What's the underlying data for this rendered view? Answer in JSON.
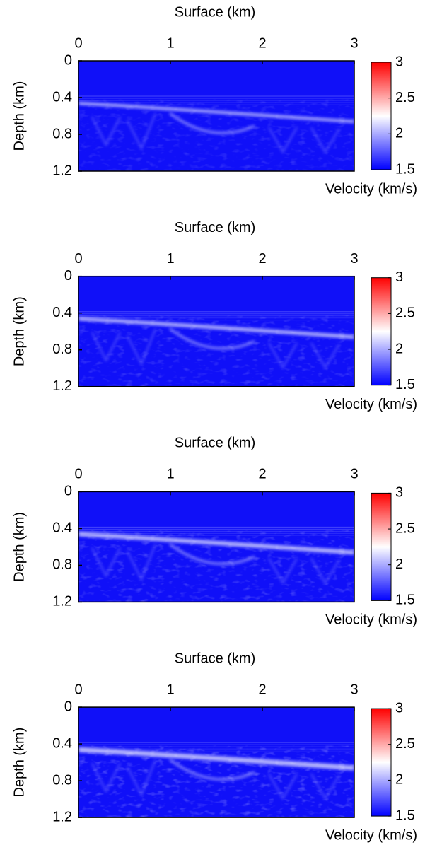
{
  "chart_data": [
    {
      "type": "heatmap",
      "xlabel": "Surface (km)",
      "ylabel": "Depth (km)",
      "colorbar_label": "Velocity (km/s)",
      "xlim": [
        0,
        3
      ],
      "xticks": [
        0,
        1,
        2,
        3
      ],
      "ylim": [
        0,
        1.2
      ],
      "yticks": [
        0,
        0.4,
        0.8,
        1.2
      ],
      "clim": [
        1.5,
        3
      ],
      "cticks": [
        1.5,
        2,
        2.5,
        3
      ],
      "colormap": [
        "#0000ff",
        "#ffffff",
        "#ff0000"
      ]
    },
    {
      "type": "heatmap",
      "xlabel": "Surface (km)",
      "ylabel": "Depth (km)",
      "colorbar_label": "Velocity (km/s)",
      "xlim": [
        0,
        3
      ],
      "xticks": [
        0,
        1,
        2,
        3
      ],
      "ylim": [
        0,
        1.2
      ],
      "yticks": [
        0,
        0.4,
        0.8,
        1.2
      ],
      "clim": [
        1.5,
        3
      ],
      "cticks": [
        1.5,
        2,
        2.5,
        3
      ],
      "colormap": [
        "#0000ff",
        "#ffffff",
        "#ff0000"
      ]
    },
    {
      "type": "heatmap",
      "xlabel": "Surface (km)",
      "ylabel": "Depth (km)",
      "colorbar_label": "Velocity (km/s)",
      "xlim": [
        0,
        3
      ],
      "xticks": [
        0,
        1,
        2,
        3
      ],
      "ylim": [
        0,
        1.2
      ],
      "yticks": [
        0,
        0.4,
        0.8,
        1.2
      ],
      "clim": [
        1.5,
        3
      ],
      "cticks": [
        1.5,
        2,
        2.5,
        3
      ],
      "colormap": [
        "#0000ff",
        "#ffffff",
        "#ff0000"
      ]
    },
    {
      "type": "heatmap",
      "xlabel": "Surface (km)",
      "ylabel": "Depth (km)",
      "colorbar_label": "Velocity (km/s)",
      "xlim": [
        0,
        3
      ],
      "xticks": [
        0,
        1,
        2,
        3
      ],
      "ylim": [
        0,
        1.2
      ],
      "yticks": [
        0,
        0.4,
        0.8,
        1.2
      ],
      "clim": [
        1.5,
        3
      ],
      "cticks": [
        1.5,
        2,
        2.5,
        3
      ],
      "colormap": [
        "#0000ff",
        "#ffffff",
        "#ff0000"
      ]
    }
  ]
}
